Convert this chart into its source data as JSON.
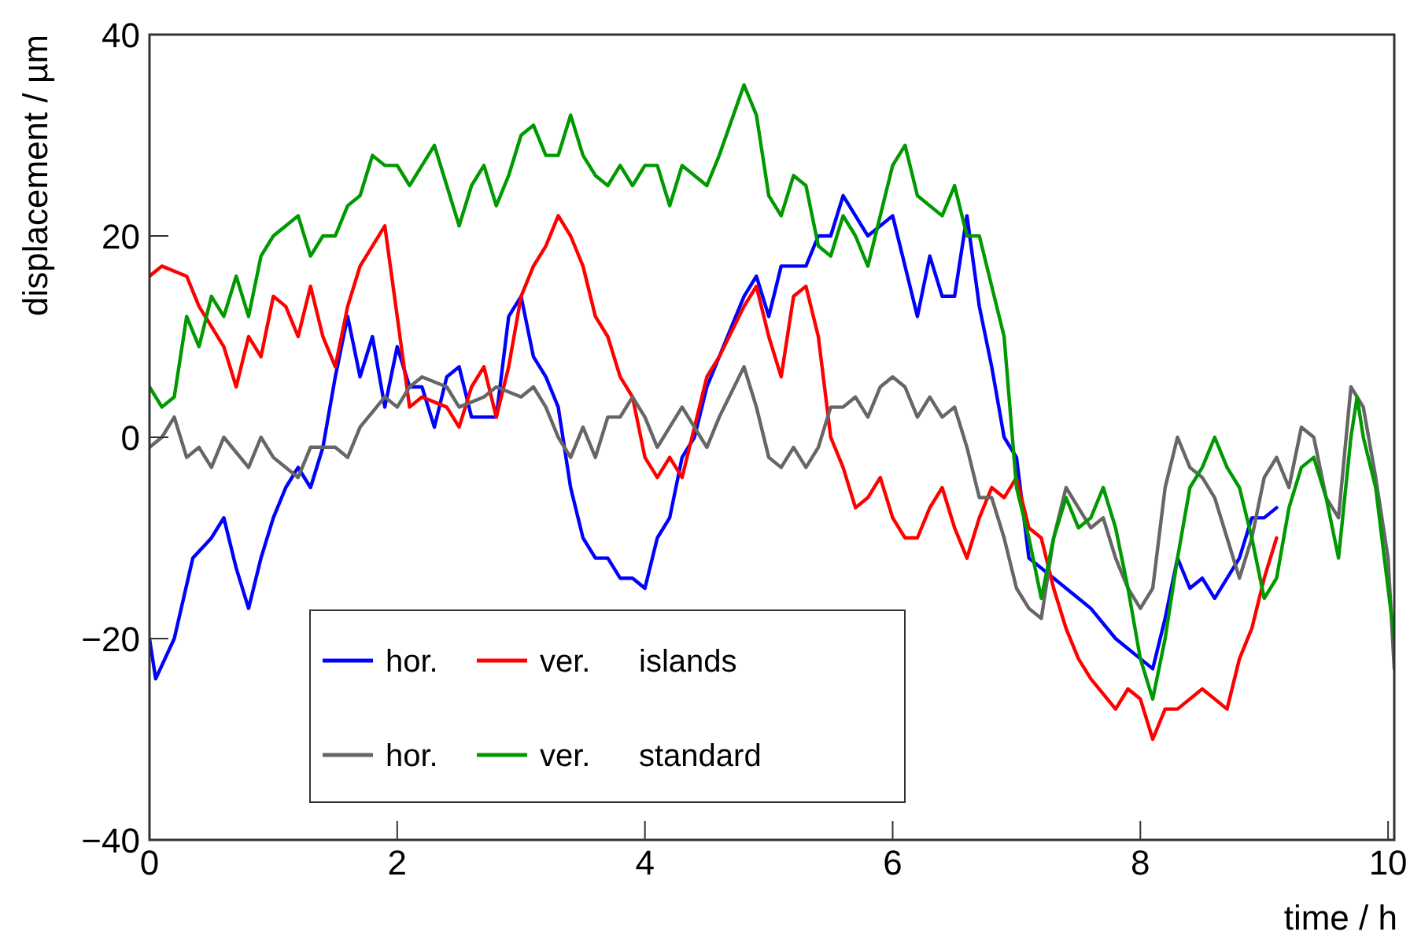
{
  "chart_data": {
    "type": "line",
    "xlabel": "time / h",
    "ylabel": "displacement / µm",
    "xlim": [
      0,
      10.05
    ],
    "ylim": [
      -40,
      40
    ],
    "xticks": [
      0,
      2,
      4,
      6,
      8,
      10
    ],
    "yticks": [
      {
        "value": -40,
        "label": "−40"
      },
      {
        "value": -20,
        "label": "−20"
      },
      0,
      20,
      40
    ],
    "grid": false,
    "legend": "bottom left",
    "line_style": "solid",
    "marker": "none",
    "annotations": [
      "islands",
      "standard"
    ],
    "series": [
      {
        "name": "hor.",
        "color": "#0000ff",
        "x": [
          0,
          0.05,
          0.2,
          0.35,
          0.5,
          0.6,
          0.7,
          0.8,
          0.9,
          1.0,
          1.1,
          1.2,
          1.3,
          1.4,
          1.5,
          1.6,
          1.7,
          1.8,
          1.9,
          2.0,
          2.1,
          2.2,
          2.3,
          2.4,
          2.5,
          2.6,
          2.8,
          2.9,
          3.0,
          3.1,
          3.2,
          3.3,
          3.4,
          3.5,
          3.6,
          3.7,
          3.8,
          3.9,
          4.0,
          4.1,
          4.2,
          4.3,
          4.4,
          4.5,
          4.6,
          4.8,
          4.9,
          5.0,
          5.1,
          5.3,
          5.4,
          5.5,
          5.6,
          5.7,
          5.8,
          6.0,
          6.1,
          6.2,
          6.3,
          6.4,
          6.5,
          6.6,
          6.7,
          6.8,
          6.9,
          7.0,
          7.1,
          7.2,
          7.4,
          7.6,
          7.8,
          8.0,
          8.1,
          8.2,
          8.3,
          8.4,
          8.5,
          8.6,
          8.8,
          8.9,
          9.0,
          9.1
        ],
        "values": [
          -20,
          -24,
          -20,
          -12,
          -10,
          -8,
          -13,
          -17,
          -12,
          -8,
          -5,
          -3,
          -5,
          -1,
          6,
          12,
          6,
          10,
          3,
          9,
          5,
          5,
          1,
          6,
          7,
          2,
          2,
          12,
          14,
          8,
          6,
          3,
          -5,
          -10,
          -12,
          -12,
          -14,
          -14,
          -15,
          -10,
          -8,
          -2,
          0,
          5,
          8,
          14,
          16,
          12,
          17,
          17,
          20,
          20,
          24,
          22,
          20,
          22,
          17,
          12,
          18,
          14,
          14,
          22,
          13,
          7,
          0,
          -2,
          -12,
          -13,
          -15,
          -17,
          -20,
          -22,
          -23,
          -18,
          -12,
          -15,
          -14,
          -16,
          -12,
          -8,
          -8,
          -7
        ]
      },
      {
        "name": "ver.",
        "color": "#ff0000",
        "x": [
          0,
          0.1,
          0.3,
          0.4,
          0.5,
          0.6,
          0.7,
          0.8,
          0.9,
          1.0,
          1.1,
          1.2,
          1.3,
          1.4,
          1.5,
          1.6,
          1.7,
          1.8,
          1.9,
          2.0,
          2.1,
          2.2,
          2.4,
          2.5,
          2.6,
          2.7,
          2.8,
          2.9,
          3.0,
          3.1,
          3.2,
          3.3,
          3.4,
          3.5,
          3.6,
          3.7,
          3.8,
          3.9,
          4.0,
          4.1,
          4.2,
          4.3,
          4.4,
          4.5,
          4.6,
          4.8,
          4.9,
          5.0,
          5.1,
          5.2,
          5.3,
          5.4,
          5.5,
          5.6,
          5.7,
          5.8,
          5.9,
          6.0,
          6.1,
          6.2,
          6.3,
          6.4,
          6.5,
          6.6,
          6.7,
          6.8,
          6.9,
          7.0,
          7.1,
          7.2,
          7.3,
          7.4,
          7.5,
          7.6,
          7.8,
          7.9,
          8.0,
          8.1,
          8.2,
          8.3,
          8.5,
          8.7,
          8.8,
          8.9,
          9.0,
          9.1
        ],
        "values": [
          16,
          17,
          16,
          13,
          11,
          9,
          5,
          10,
          8,
          14,
          13,
          10,
          15,
          10,
          7,
          13,
          17,
          19,
          21,
          12,
          3,
          4,
          3,
          1,
          5,
          7,
          2,
          7,
          14,
          17,
          19,
          22,
          20,
          17,
          12,
          10,
          6,
          4,
          -2,
          -4,
          -2,
          -4,
          1,
          6,
          8,
          13,
          15,
          10,
          6,
          14,
          15,
          10,
          0,
          -3,
          -7,
          -6,
          -4,
          -8,
          -10,
          -10,
          -7,
          -5,
          -9,
          -12,
          -8,
          -5,
          -6,
          -4,
          -9,
          -10,
          -15,
          -19,
          -22,
          -24,
          -27,
          -25,
          -26,
          -30,
          -27,
          -27,
          -25,
          -27,
          -22,
          -19,
          -14,
          -10
        ]
      },
      {
        "name": "hor.",
        "color": "#666666",
        "x": [
          0,
          0.1,
          0.2,
          0.3,
          0.4,
          0.5,
          0.6,
          0.8,
          0.9,
          1.0,
          1.2,
          1.3,
          1.5,
          1.6,
          1.7,
          1.9,
          2.0,
          2.1,
          2.2,
          2.4,
          2.5,
          2.7,
          2.8,
          3.0,
          3.1,
          3.2,
          3.3,
          3.4,
          3.5,
          3.6,
          3.7,
          3.8,
          3.9,
          4.0,
          4.1,
          4.2,
          4.3,
          4.5,
          4.6,
          4.8,
          4.9,
          5.0,
          5.1,
          5.2,
          5.3,
          5.4,
          5.5,
          5.6,
          5.7,
          5.8,
          5.9,
          6.0,
          6.1,
          6.2,
          6.3,
          6.4,
          6.5,
          6.6,
          6.7,
          6.8,
          6.9,
          7.0,
          7.1,
          7.2,
          7.3,
          7.4,
          7.5,
          7.6,
          7.7,
          7.8,
          7.9,
          8.0,
          8.1,
          8.2,
          8.3,
          8.4,
          8.5,
          8.6,
          8.7,
          8.8,
          8.9,
          9.0,
          9.1,
          9.2,
          9.3,
          9.4,
          9.5,
          9.6,
          9.7,
          9.8,
          9.9,
          10.0,
          10.05
        ],
        "values": [
          -1,
          0,
          2,
          -2,
          -1,
          -3,
          0,
          -3,
          0,
          -2,
          -4,
          -1,
          -1,
          -2,
          1,
          4,
          3,
          5,
          6,
          5,
          3,
          4,
          5,
          4,
          5,
          3,
          0,
          -2,
          1,
          -2,
          2,
          2,
          4,
          2,
          -1,
          1,
          3,
          -1,
          2,
          7,
          3,
          -2,
          -3,
          -1,
          -3,
          -1,
          3,
          3,
          4,
          2,
          5,
          6,
          5,
          2,
          4,
          2,
          3,
          -1,
          -6,
          -6,
          -10,
          -15,
          -17,
          -18,
          -10,
          -5,
          -7,
          -9,
          -8,
          -12,
          -15,
          -17,
          -15,
          -5,
          0,
          -3,
          -4,
          -6,
          -10,
          -14,
          -10,
          -4,
          -2,
          -5,
          1,
          0,
          -6,
          -8,
          5,
          3,
          -4,
          -12,
          -23
        ]
      },
      {
        "name": "ver.",
        "color": "#009900",
        "x": [
          0,
          0.1,
          0.2,
          0.3,
          0.4,
          0.5,
          0.6,
          0.7,
          0.8,
          0.9,
          1.0,
          1.1,
          1.2,
          1.3,
          1.4,
          1.5,
          1.6,
          1.7,
          1.8,
          1.9,
          2.0,
          2.1,
          2.2,
          2.3,
          2.4,
          2.5,
          2.6,
          2.7,
          2.8,
          2.9,
          3.0,
          3.1,
          3.2,
          3.3,
          3.4,
          3.5,
          3.6,
          3.7,
          3.8,
          3.9,
          4.0,
          4.1,
          4.2,
          4.3,
          4.4,
          4.5,
          4.6,
          4.8,
          4.9,
          5.0,
          5.1,
          5.2,
          5.3,
          5.4,
          5.5,
          5.6,
          5.7,
          5.8,
          5.9,
          6.0,
          6.1,
          6.2,
          6.4,
          6.5,
          6.6,
          6.7,
          6.8,
          6.9,
          7.0,
          7.1,
          7.2,
          7.3,
          7.4,
          7.5,
          7.6,
          7.7,
          7.8,
          7.9,
          8.0,
          8.1,
          8.2,
          8.3,
          8.4,
          8.5,
          8.6,
          8.7,
          8.8,
          8.9,
          9.0,
          9.1,
          9.2,
          9.3,
          9.4,
          9.5,
          9.6,
          9.7,
          9.75,
          9.8,
          9.9,
          10.0,
          10.05
        ],
        "values": [
          5,
          3,
          4,
          12,
          9,
          14,
          12,
          16,
          12,
          18,
          20,
          21,
          22,
          18,
          20,
          20,
          23,
          24,
          28,
          27,
          27,
          25,
          27,
          29,
          25,
          21,
          25,
          27,
          23,
          26,
          30,
          31,
          28,
          28,
          32,
          28,
          26,
          25,
          27,
          25,
          27,
          27,
          23,
          27,
          26,
          25,
          28,
          35,
          32,
          24,
          22,
          26,
          25,
          19,
          18,
          22,
          20,
          17,
          22,
          27,
          29,
          24,
          22,
          25,
          20,
          20,
          15,
          10,
          -5,
          -10,
          -16,
          -10,
          -6,
          -9,
          -8,
          -5,
          -9,
          -15,
          -22,
          -26,
          -20,
          -12,
          -5,
          -3,
          0,
          -3,
          -5,
          -10,
          -16,
          -14,
          -7,
          -3,
          -2,
          -6,
          -12,
          0,
          4,
          0,
          -5,
          -15,
          -20
        ]
      }
    ]
  }
}
